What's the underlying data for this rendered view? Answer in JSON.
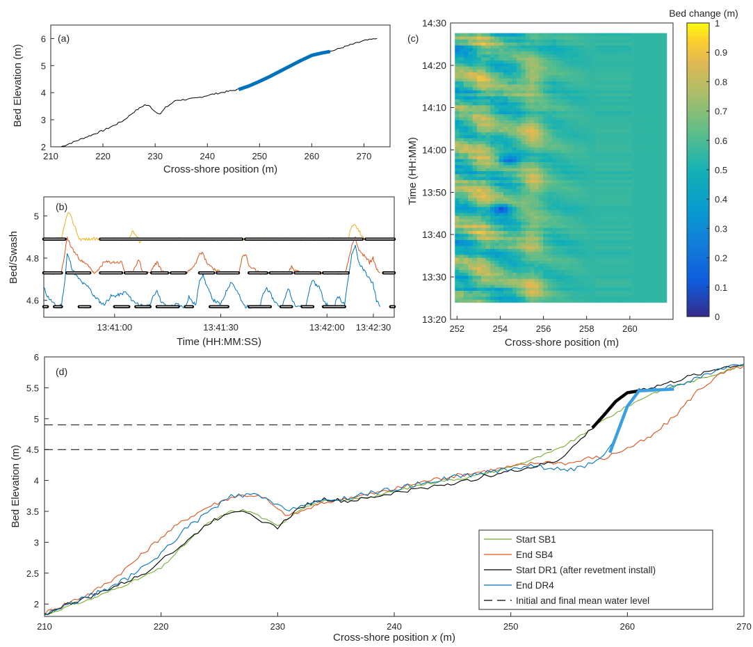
{
  "figure": {
    "panel_a": {
      "tag": "(a)"
    },
    "panel_b": {
      "tag": "(b)"
    },
    "panel_c": {
      "tag": "(c)"
    },
    "panel_d": {
      "tag": "(d)"
    },
    "colors": {
      "black": "#000000",
      "blue": "#0072BD",
      "blue_thick": "#1f87d6",
      "orange": "#D95319",
      "yellow": "#EDB120",
      "green": "#77AC30",
      "dr4_blue": "#3aa0e0"
    }
  },
  "chart_data": [
    {
      "panel": "a",
      "type": "line",
      "xlabel": "Cross-shore position (m)",
      "ylabel": "Bed Elevation (m)",
      "xlim": [
        210,
        275
      ],
      "ylim": [
        2,
        6.5
      ],
      "xticks": [
        210,
        220,
        230,
        240,
        250,
        260,
        270
      ],
      "yticks": [
        2,
        3,
        4,
        5,
        6
      ],
      "grid": false,
      "series": [
        {
          "style": "thin-black",
          "x": [
            212,
            214,
            216,
            218,
            220,
            222,
            224,
            226,
            228,
            229,
            230,
            231,
            232,
            234,
            236,
            238,
            240,
            242,
            244,
            246,
            248,
            250,
            252,
            254,
            256,
            258,
            260,
            262,
            264,
            266,
            268,
            270,
            272.5
          ],
          "y": [
            2.0,
            2.15,
            2.3,
            2.45,
            2.6,
            2.78,
            2.98,
            3.3,
            3.55,
            3.5,
            3.3,
            3.22,
            3.45,
            3.72,
            3.75,
            3.8,
            3.9,
            3.98,
            4.05,
            4.12,
            4.25,
            4.42,
            4.6,
            4.8,
            5.0,
            5.2,
            5.38,
            5.47,
            5.55,
            5.68,
            5.8,
            5.92,
            6.0
          ]
        },
        {
          "style": "thick-blue",
          "x": [
            246,
            248,
            250,
            252,
            254,
            256,
            258,
            260,
            262,
            263.5
          ],
          "y": [
            4.12,
            4.25,
            4.42,
            4.6,
            4.8,
            5.0,
            5.2,
            5.38,
            5.47,
            5.52
          ]
        }
      ]
    },
    {
      "panel": "b",
      "type": "line",
      "xlabel": "Time (HH:MM:SS)",
      "ylabel": "Bed/Swash",
      "xlim": [
        0,
        99
      ],
      "ylim": [
        4.52,
        5.09
      ],
      "xtick_values": [
        20,
        50,
        80
      ],
      "xtick_labels": [
        "13:41:00",
        "13:41:30",
        "13:42:00",
        "13:42:30"
      ],
      "xtick_positions": [
        20,
        50,
        80,
        110
      ],
      "yticks": [
        4.6,
        4.8,
        5.0
      ],
      "ytick_labels": [
        "4.6",
        "4.8",
        "5"
      ],
      "beds": [
        4.89,
        4.73,
        4.57
      ],
      "yellow_swash": {
        "t": [
          0,
          5,
          6,
          7,
          8,
          9,
          10,
          13,
          14,
          23,
          24,
          25,
          26,
          27,
          28,
          86,
          87,
          88,
          89,
          90,
          91
        ],
        "v": [
          4.89,
          4.89,
          4.97,
          5.02,
          4.98,
          4.94,
          4.89,
          4.89,
          4.89,
          4.89,
          4.89,
          4.93,
          4.91,
          4.88,
          4.89,
          4.89,
          4.96,
          4.95,
          4.93,
          4.9,
          4.89
        ]
      },
      "orange_swash": {
        "t": [
          0,
          5,
          6,
          6.6,
          7.5,
          9,
          11,
          13,
          14,
          15,
          16,
          17,
          22,
          23,
          24,
          25,
          26,
          27,
          28,
          30,
          31,
          32,
          33,
          34,
          35,
          36,
          37,
          38,
          39,
          40,
          41,
          43,
          44,
          45,
          46,
          48,
          50,
          55,
          56,
          57,
          58,
          61,
          64,
          69,
          70,
          71,
          74,
          79,
          80,
          85,
          86,
          87,
          88,
          89,
          90,
          91,
          92,
          93,
          94,
          95
        ],
        "v": [
          4.73,
          4.73,
          4.83,
          4.9,
          4.86,
          4.82,
          4.78,
          4.76,
          4.73,
          4.73,
          4.76,
          4.78,
          4.78,
          4.73,
          4.73,
          4.73,
          4.77,
          4.79,
          4.73,
          4.73,
          4.76,
          4.78,
          4.75,
          4.73,
          4.73,
          4.73,
          4.73,
          4.73,
          4.73,
          4.73,
          4.74,
          4.78,
          4.83,
          4.82,
          4.78,
          4.75,
          4.73,
          4.73,
          4.8,
          4.82,
          4.76,
          4.73,
          4.73,
          4.73,
          4.76,
          4.74,
          4.73,
          4.73,
          4.73,
          4.73,
          4.78,
          4.86,
          4.9,
          4.84,
          4.82,
          4.8,
          4.78,
          4.8,
          4.75,
          4.73
        ]
      },
      "blue_swash": {
        "t": [
          0,
          1,
          2,
          3,
          4,
          5,
          6,
          6.6,
          7.5,
          8,
          9,
          10,
          11,
          12,
          13,
          14,
          15,
          16,
          17,
          18,
          19,
          20,
          22,
          23,
          24,
          25,
          26,
          27,
          28,
          29,
          30,
          31,
          32,
          33,
          34,
          35,
          36,
          37,
          38,
          39,
          40,
          41,
          42,
          43,
          44,
          45,
          46,
          47,
          48,
          49,
          50,
          52,
          53,
          54,
          55,
          56,
          57,
          58,
          60,
          61,
          62,
          63,
          64,
          65,
          66,
          67,
          68,
          69,
          70,
          71,
          73,
          74,
          75,
          76,
          77,
          78,
          79,
          80,
          81,
          82,
          83,
          84,
          85,
          86,
          87,
          88,
          89,
          90,
          91,
          92,
          93,
          94,
          95
        ],
        "v": [
          4.66,
          4.62,
          4.6,
          4.58,
          4.57,
          4.58,
          4.7,
          4.82,
          4.78,
          4.75,
          4.72,
          4.7,
          4.68,
          4.67,
          4.66,
          4.62,
          4.61,
          4.59,
          4.58,
          4.6,
          4.62,
          4.62,
          4.63,
          4.64,
          4.62,
          4.6,
          4.59,
          4.58,
          4.57,
          4.57,
          4.58,
          4.62,
          4.65,
          4.6,
          4.58,
          4.57,
          4.57,
          4.58,
          4.58,
          4.57,
          4.57,
          4.62,
          4.59,
          4.58,
          4.7,
          4.72,
          4.67,
          4.63,
          4.6,
          4.59,
          4.58,
          4.66,
          4.69,
          4.66,
          4.63,
          4.59,
          4.57,
          4.57,
          4.57,
          4.57,
          4.63,
          4.66,
          4.63,
          4.6,
          4.58,
          4.57,
          4.6,
          4.66,
          4.61,
          4.58,
          4.57,
          4.57,
          4.65,
          4.7,
          4.67,
          4.66,
          4.6,
          4.58,
          4.57,
          4.57,
          4.62,
          4.6,
          4.58,
          4.7,
          4.82,
          4.86,
          4.78,
          4.75,
          4.73,
          4.7,
          4.68,
          4.6,
          4.57
        ]
      }
    },
    {
      "panel": "c",
      "type": "heatmap",
      "xlabel": "Cross-shore position (m)",
      "ylabel": "Time (HH:MM)",
      "xlim": [
        251.7,
        262
      ],
      "xticks": [
        252,
        254,
        256,
        258,
        260
      ],
      "ylim": [
        13.333,
        14.5
      ],
      "ytick_values": [
        13.333,
        13.5,
        13.667,
        13.833,
        14.0,
        14.167,
        14.333,
        14.5
      ],
      "ytick_labels": [
        "13:20",
        "13:30",
        "13:40",
        "13:50",
        "14:00",
        "14:10",
        "14:20",
        "14:30"
      ],
      "data_range_time": [
        13.4,
        14.46
      ],
      "data_range_x": [
        251.9,
        261.7
      ],
      "colorbar": {
        "title": "Bed change (m)",
        "range": [
          0,
          1
        ],
        "ticks": [
          0,
          0.1,
          0.2,
          0.3,
          0.4,
          0.5,
          0.6,
          0.7,
          0.8,
          0.9,
          1
        ],
        "tick_labels": [
          "0",
          "0.1",
          "0.2",
          "0.3",
          "0.4",
          "0.5",
          "0.6",
          "0.7",
          "0.8",
          "0.9",
          "1"
        ],
        "colormap": "parula"
      },
      "features": {
        "baseline": 0.55,
        "yellow_band_x": 255.5,
        "blue_spots": [
          [
            254.4,
            13.96
          ],
          [
            254.1,
            13.77
          ]
        ]
      }
    },
    {
      "panel": "d",
      "type": "line",
      "xlabel_prefix": "Cross-shore position ",
      "xlabel_var": "x",
      "xlabel_suffix": " (m)",
      "ylabel": "Bed Elevation (m)",
      "xlim": [
        210,
        270
      ],
      "ylim": [
        1.8,
        6
      ],
      "xticks": [
        210,
        220,
        230,
        240,
        250,
        260,
        270
      ],
      "yticks": [
        2,
        2.5,
        3,
        3.5,
        4,
        4.5,
        5,
        5.5,
        6
      ],
      "ytick_labels": [
        "2",
        "2.5",
        "3",
        "3.5",
        "4",
        "4.5",
        "5",
        "5.5",
        "6"
      ],
      "legend_position": "lower-right",
      "water_levels": [
        {
          "y": 4.9,
          "x_end": 256.8
        },
        {
          "y": 4.5,
          "x_end": 253.5
        }
      ],
      "series": [
        {
          "name": "Start SB1",
          "color": "#77AC30",
          "x": [
            210,
            212,
            214,
            216,
            218,
            220,
            222,
            224,
            226,
            227,
            228,
            229,
            230,
            232,
            234,
            236,
            238,
            240,
            242,
            244,
            246,
            248,
            250,
            252,
            254,
            256,
            257,
            258,
            260,
            262,
            264,
            266,
            268,
            270
          ],
          "y": [
            1.82,
            1.96,
            2.08,
            2.24,
            2.4,
            2.58,
            2.96,
            3.3,
            3.5,
            3.52,
            3.47,
            3.36,
            3.26,
            3.55,
            3.66,
            3.68,
            3.74,
            3.82,
            3.92,
            3.99,
            4.04,
            4.12,
            4.22,
            4.35,
            4.5,
            4.72,
            4.85,
            4.98,
            5.2,
            5.4,
            5.53,
            5.63,
            5.75,
            5.87
          ]
        },
        {
          "name": "End SB4",
          "color": "#D95319",
          "x": [
            210,
            212,
            214,
            216,
            218,
            220,
            222,
            224,
            226,
            227,
            228,
            229,
            230,
            231,
            232,
            234,
            236,
            238,
            240,
            242,
            244,
            246,
            248,
            250,
            252,
            253,
            254,
            255,
            256,
            257,
            258,
            259,
            260,
            262,
            264,
            266,
            268,
            270
          ],
          "y": [
            1.85,
            2.02,
            2.18,
            2.42,
            2.74,
            3.08,
            3.36,
            3.57,
            3.73,
            3.76,
            3.76,
            3.7,
            3.52,
            3.43,
            3.5,
            3.64,
            3.72,
            3.78,
            3.86,
            3.96,
            4.04,
            4.1,
            4.16,
            4.22,
            4.28,
            4.3,
            4.29,
            4.28,
            4.32,
            4.38,
            4.35,
            4.45,
            4.52,
            4.7,
            5.03,
            5.45,
            5.72,
            5.86
          ]
        },
        {
          "name": "Start DR1 (after revetment install)",
          "color": "#000000",
          "x": [
            210,
            212,
            214,
            216,
            218,
            219,
            220,
            221,
            222,
            224,
            226,
            227,
            228,
            229,
            230,
            232,
            234,
            236,
            238,
            240,
            242,
            244,
            246,
            248,
            250,
            252,
            254,
            255,
            256,
            257,
            258,
            259,
            260,
            260.5,
            262,
            264,
            266,
            268,
            270
          ],
          "y": [
            1.83,
            2.0,
            2.12,
            2.28,
            2.44,
            2.55,
            2.74,
            2.84,
            2.98,
            3.3,
            3.5,
            3.52,
            3.44,
            3.3,
            3.24,
            3.58,
            3.7,
            3.66,
            3.72,
            3.8,
            3.86,
            3.93,
            3.98,
            4.08,
            4.15,
            4.22,
            4.32,
            4.48,
            4.66,
            4.85,
            5.06,
            5.28,
            5.42,
            5.45,
            5.5,
            5.6,
            5.72,
            5.82,
            5.88
          ]
        },
        {
          "name": "End DR4",
          "color": "#0072BD",
          "x": [
            210,
            212,
            214,
            216,
            218,
            220,
            222,
            224,
            226,
            227,
            228,
            229,
            230,
            231,
            232,
            234,
            236,
            238,
            240,
            242,
            244,
            246,
            248,
            250,
            252,
            254,
            256,
            257,
            258,
            259,
            260,
            261,
            262,
            264,
            266,
            268,
            270
          ],
          "y": [
            1.83,
            1.99,
            2.14,
            2.3,
            2.52,
            2.82,
            3.2,
            3.48,
            3.74,
            3.76,
            3.76,
            3.7,
            3.58,
            3.54,
            3.6,
            3.66,
            3.72,
            3.8,
            3.86,
            3.94,
            4.02,
            4.08,
            4.13,
            4.2,
            4.24,
            4.18,
            4.2,
            4.27,
            4.38,
            4.7,
            5.2,
            5.45,
            5.46,
            5.52,
            5.66,
            5.79,
            5.88
          ]
        }
      ],
      "highlights": [
        {
          "of": "Start DR1 (after revetment install)",
          "color": "#000000",
          "x": [
            257,
            258,
            259,
            260,
            261
          ],
          "y": [
            4.85,
            5.06,
            5.28,
            5.42,
            5.45
          ]
        },
        {
          "of": "End DR4",
          "color": "#3aa0e0",
          "x": [
            258.5,
            259,
            260,
            261,
            262,
            263,
            264
          ],
          "y": [
            4.45,
            4.7,
            5.2,
            5.45,
            5.46,
            5.47,
            5.48
          ]
        }
      ],
      "legend": [
        {
          "label": "Start SB1",
          "color": "#77AC30",
          "style": "solid"
        },
        {
          "label": "End SB4",
          "color": "#D95319",
          "style": "solid"
        },
        {
          "label": "Start DR1 (after revetment install)",
          "color": "#000000",
          "style": "solid"
        },
        {
          "label": "End DR4",
          "color": "#0072BD",
          "style": "solid"
        },
        {
          "label": "Initial and final mean water level",
          "color": "#000000",
          "style": "dashed"
        }
      ]
    }
  ]
}
